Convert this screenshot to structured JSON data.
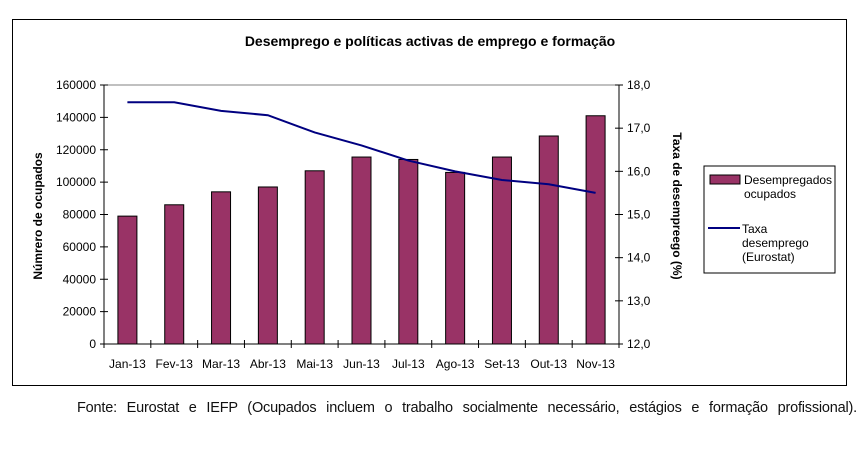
{
  "chart_data": {
    "type": "bar",
    "title": "Desemprego e políticas activas de emprego e formação",
    "categories": [
      "Jan-13",
      "Fev-13",
      "Mar-13",
      "Abr-13",
      "Mai-13",
      "Jun-13",
      "Jul-13",
      "Ago-13",
      "Set-13",
      "Out-13",
      "Nov-13"
    ],
    "series": [
      {
        "name": "Desempregados ocupados",
        "legend_lines": [
          "Desempregados",
          "ocupados"
        ],
        "type": "bar",
        "axis": "left",
        "color": "#993366",
        "values": [
          79000,
          86000,
          94000,
          97000,
          107000,
          115500,
          114000,
          106000,
          115500,
          128500,
          141000
        ]
      },
      {
        "name": "Taxa desemprego (Eurostat)",
        "legend_lines": [
          "Taxa",
          "desemprego",
          "(Eurostat)"
        ],
        "type": "line",
        "axis": "right",
        "color": "#000080",
        "values": [
          17.6,
          17.6,
          17.4,
          17.3,
          16.9,
          16.6,
          16.25,
          16.0,
          15.8,
          15.7,
          15.5
        ]
      }
    ],
    "ylabel": "Númrero de ocupados",
    "y2label": "Taxa de desempreego (%)",
    "xlabel": "",
    "ylim": [
      0,
      160000
    ],
    "y2lim": [
      12.0,
      18.0
    ],
    "yticks": [
      "0",
      "20000",
      "40000",
      "60000",
      "80000",
      "100000",
      "120000",
      "140000",
      "160000"
    ],
    "y2ticks": [
      "12,0",
      "13,0",
      "14,0",
      "15,0",
      "16,0",
      "17,0",
      "18,0"
    ],
    "grid": false,
    "legend_position": "right"
  },
  "footnote": "Fonte: Eurostat e IEFP (Ocupados incluem o trabalho socialmente necessário, estágios e formação profissional)."
}
